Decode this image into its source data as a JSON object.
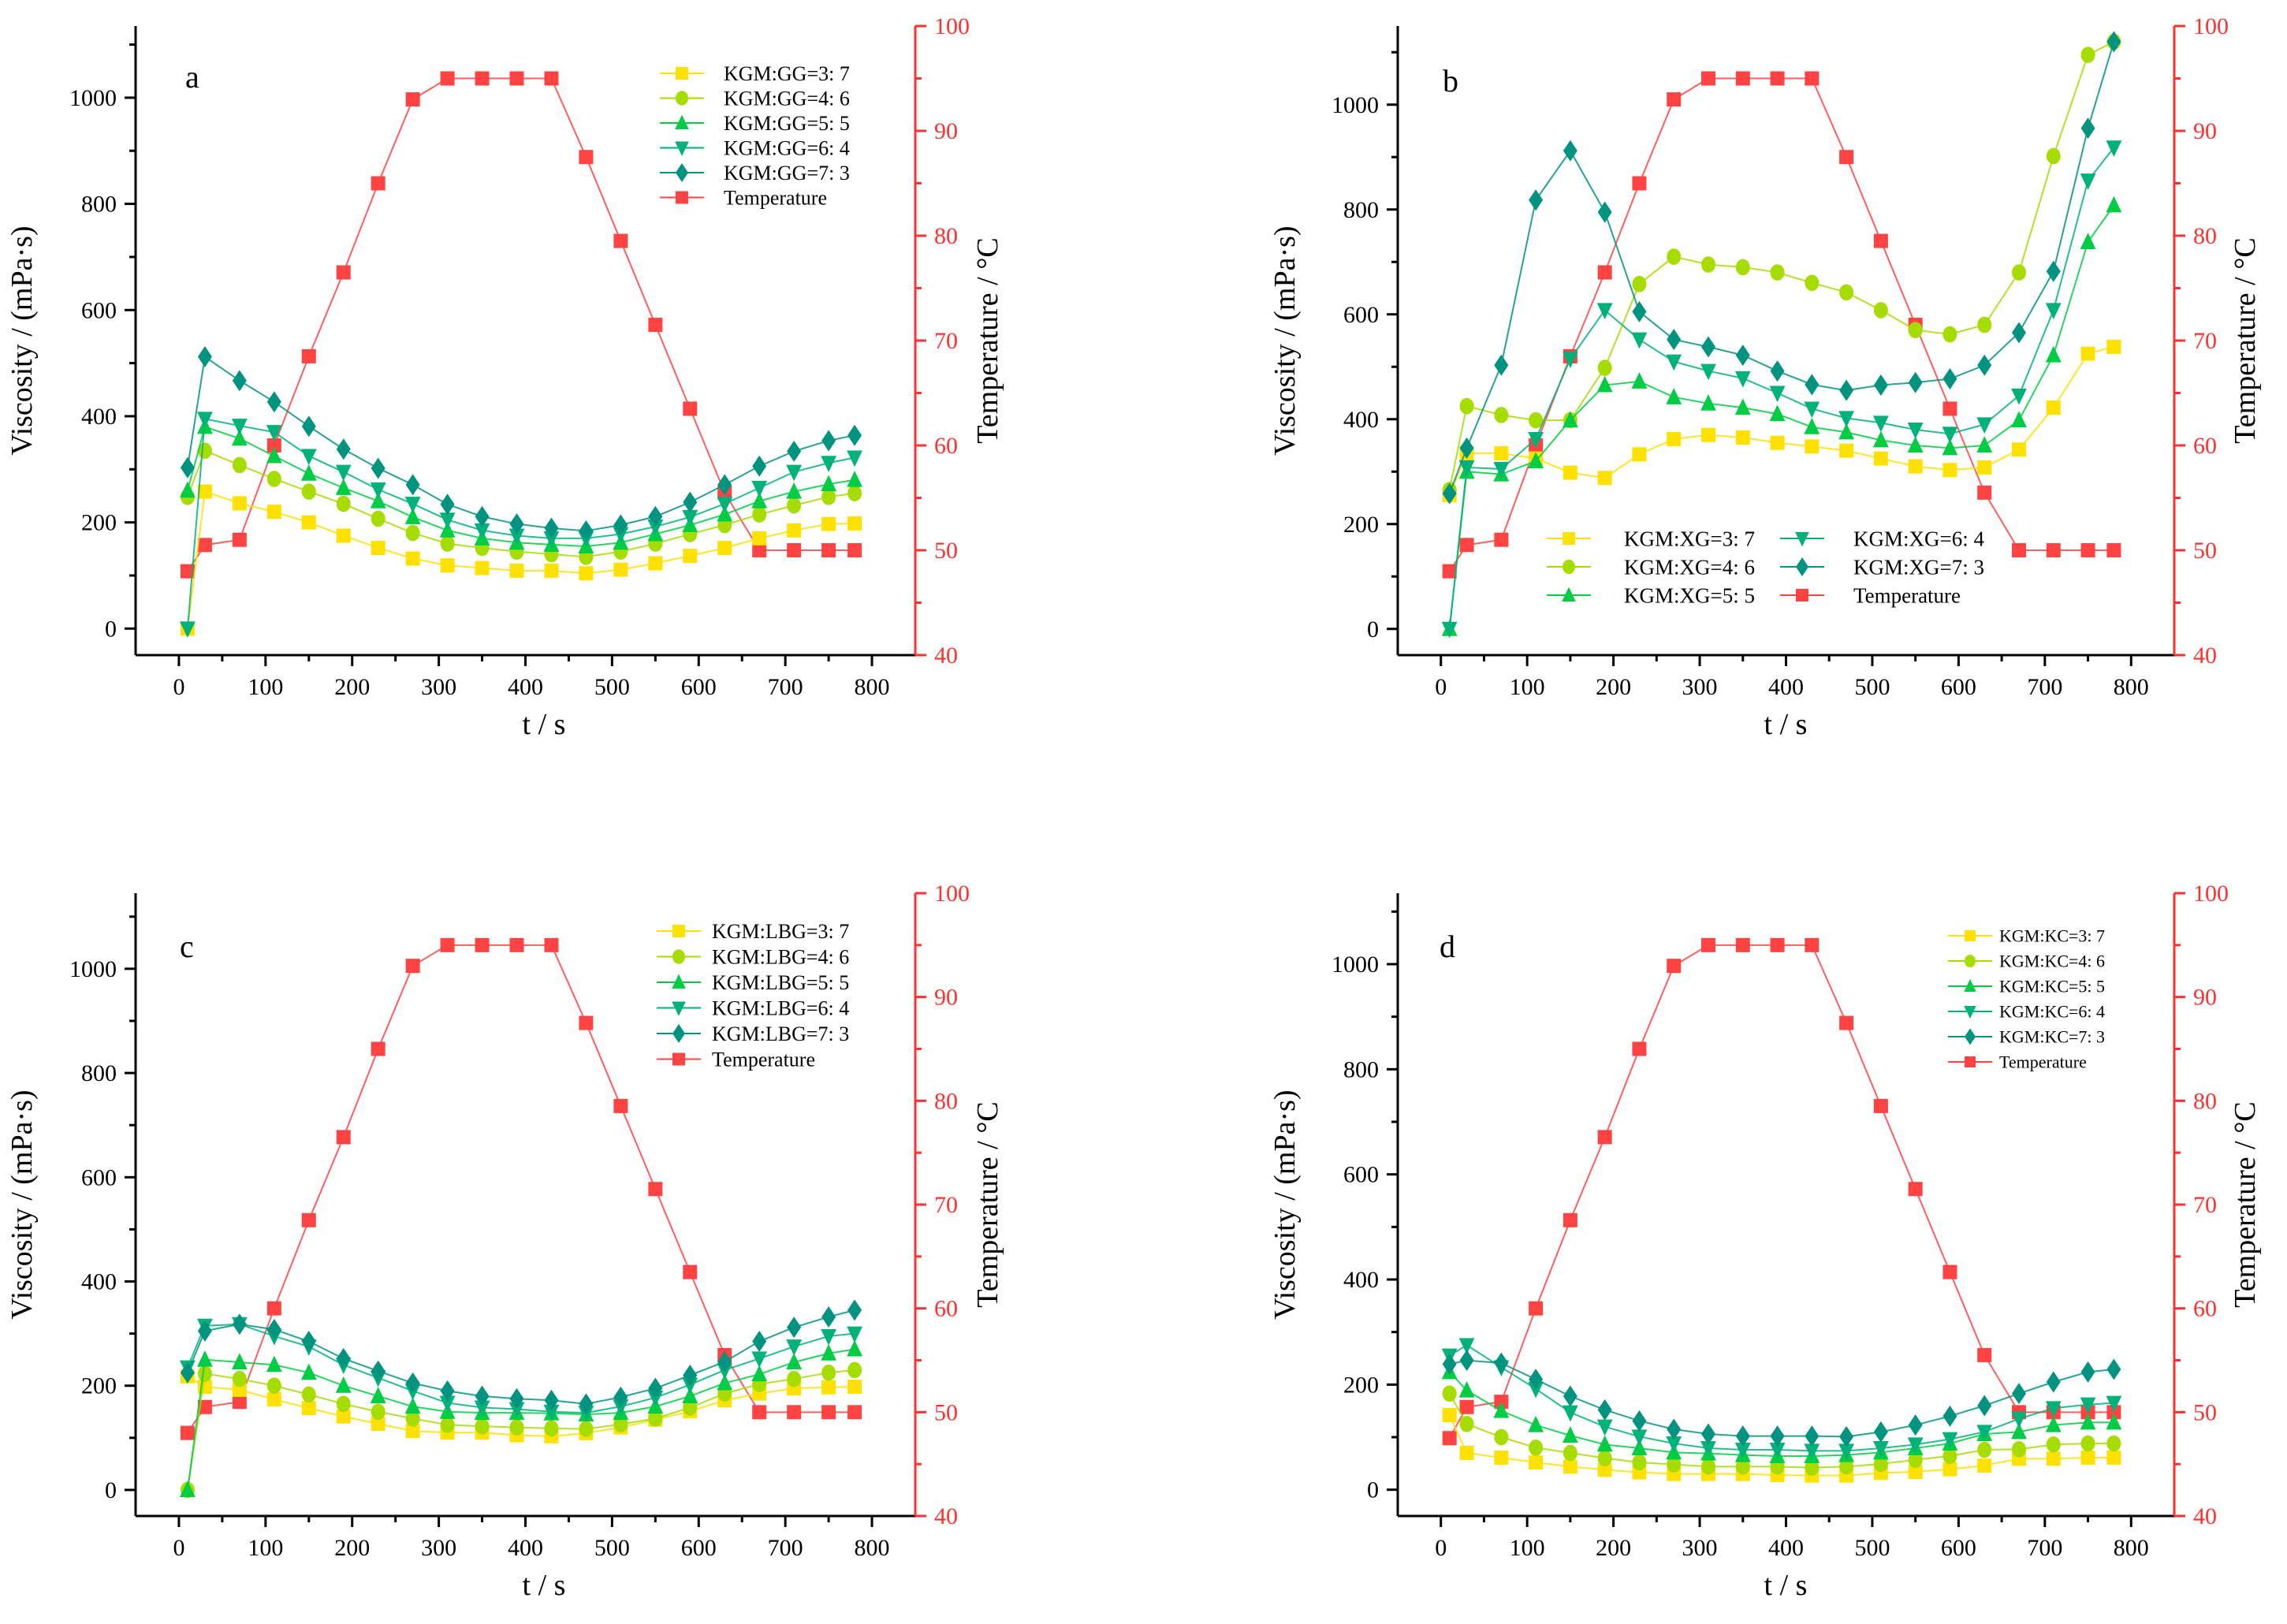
{
  "colors": {
    "s1": "#FFE100",
    "s2": "#A6DC00",
    "s3": "#00CC44",
    "s4": "#00B27A",
    "s5": "#00937F",
    "temp": "#FF4242",
    "axis2": "#FF3030"
  },
  "chart_data": [
    {
      "panel": "a",
      "type": "line",
      "x": [
        10,
        30,
        70,
        110,
        150,
        190,
        230,
        270,
        310,
        350,
        390,
        430,
        470,
        510,
        550,
        590,
        630,
        670,
        710,
        750,
        780
      ],
      "series": [
        {
          "name": "KGM:GG=3: 7",
          "marker": "square",
          "values": [
            0,
            258,
            236,
            220,
            200,
            175,
            152,
            132,
            119,
            114,
            109,
            109,
            104,
            111,
            123,
            137,
            152,
            170,
            185,
            197,
            198
          ]
        },
        {
          "name": "KGM:GG=4: 6",
          "marker": "circle",
          "values": [
            248,
            335,
            308,
            282,
            258,
            235,
            207,
            180,
            160,
            152,
            145,
            140,
            135,
            145,
            160,
            178,
            195,
            215,
            232,
            248,
            255
          ]
        },
        {
          "name": "KGM:GG=5: 5",
          "marker": "triangle-up",
          "values": [
            260,
            380,
            358,
            325,
            292,
            265,
            240,
            210,
            185,
            170,
            162,
            158,
            155,
            162,
            178,
            195,
            215,
            240,
            258,
            272,
            280
          ]
        },
        {
          "name": "KGM:GG=6: 4",
          "marker": "triangle-down",
          "values": [
            0,
            395,
            382,
            370,
            325,
            295,
            262,
            235,
            205,
            185,
            175,
            170,
            170,
            178,
            192,
            210,
            235,
            265,
            295,
            312,
            322
          ]
        },
        {
          "name": "KGM:GG=7: 3",
          "marker": "diamond",
          "values": [
            303,
            512,
            467,
            427,
            381,
            338,
            302,
            271,
            234,
            211,
            197,
            189,
            184,
            195,
            211,
            238,
            271,
            306,
            334,
            354,
            364
          ]
        }
      ],
      "temperature": {
        "name": "Temperature",
        "values": [
          48,
          50.5,
          51,
          60,
          68.5,
          76.5,
          85,
          93,
          95,
          95,
          95,
          95,
          87.5,
          79.5,
          71.5,
          63.5,
          55.5,
          50,
          50,
          50,
          50
        ]
      },
      "xlabel": "t / s",
      "ylabel": "Viscosity / (mPa·s)",
      "y2label": "Temperature / °C",
      "xlim": [
        -50,
        850
      ],
      "ylim": [
        -50,
        1135
      ],
      "y2lim": [
        40,
        100
      ],
      "xticks": [
        0,
        100,
        200,
        300,
        400,
        500,
        600,
        700,
        800
      ],
      "yticks": [
        0,
        200,
        400,
        600,
        800,
        1000
      ],
      "y2ticks": [
        40,
        50,
        60,
        70,
        80,
        90,
        100
      ],
      "legend": "top-right"
    },
    {
      "panel": "b",
      "type": "line",
      "x": [
        10,
        30,
        70,
        110,
        150,
        190,
        230,
        270,
        310,
        350,
        390,
        430,
        470,
        510,
        550,
        590,
        630,
        670,
        710,
        750,
        780
      ],
      "series": [
        {
          "name": "KGM:XG=3: 7",
          "marker": "square",
          "values": [
            255,
            335,
            335,
            325,
            298,
            288,
            333,
            362,
            370,
            365,
            355,
            348,
            340,
            325,
            310,
            303,
            308,
            342,
            422,
            525,
            538
          ]
        },
        {
          "name": "KGM:XG=4: 6",
          "marker": "circle",
          "values": [
            265,
            425,
            408,
            398,
            398,
            498,
            658,
            710,
            695,
            690,
            680,
            660,
            642,
            608,
            570,
            562,
            580,
            680,
            902,
            1095,
            1120
          ]
        },
        {
          "name": "KGM:XG=5: 5",
          "marker": "triangle-up",
          "values": [
            0,
            300,
            295,
            320,
            398,
            465,
            472,
            442,
            430,
            422,
            410,
            385,
            375,
            360,
            350,
            345,
            350,
            398,
            522,
            738,
            808
          ]
        },
        {
          "name": "KGM:XG=6: 4",
          "marker": "triangle-down",
          "values": [
            0,
            308,
            305,
            362,
            515,
            608,
            552,
            510,
            492,
            478,
            450,
            420,
            402,
            393,
            380,
            372,
            390,
            445,
            608,
            855,
            918
          ]
        },
        {
          "name": "KGM:XG=7: 3",
          "marker": "diamond",
          "values": [
            258,
            345,
            503,
            818,
            912,
            795,
            605,
            552,
            538,
            522,
            492,
            466,
            455,
            465,
            470,
            477,
            503,
            565,
            682,
            955,
            1120
          ]
        }
      ],
      "temperature": {
        "name": "Temperature",
        "values": [
          48,
          50.5,
          51,
          60,
          68.5,
          76.5,
          85,
          93,
          95,
          95,
          95,
          95,
          87.5,
          79.5,
          71.5,
          63.5,
          55.5,
          50,
          50,
          50,
          50
        ]
      },
      "xlabel": "t / s",
      "ylabel": "Viscosity / (mPa·s)",
      "y2label": "Temperature / °C",
      "xlim": [
        -50,
        850
      ],
      "ylim": [
        -50,
        1150
      ],
      "y2lim": [
        40,
        100
      ],
      "xticks": [
        0,
        100,
        200,
        300,
        400,
        500,
        600,
        700,
        800
      ],
      "yticks": [
        0,
        200,
        400,
        600,
        800,
        1000
      ],
      "y2ticks": [
        40,
        50,
        60,
        70,
        80,
        90,
        100
      ],
      "legend": "bottom-center, two columns"
    },
    {
      "panel": "c",
      "type": "line",
      "x": [
        10,
        30,
        70,
        110,
        150,
        190,
        230,
        270,
        310,
        350,
        390,
        430,
        470,
        510,
        550,
        590,
        630,
        670,
        710,
        750,
        780
      ],
      "series": [
        {
          "name": "KGM:LBG=3: 7",
          "marker": "square",
          "values": [
            218,
            198,
            192,
            174,
            157,
            141,
            127,
            113,
            110,
            110,
            105,
            103,
            109,
            120,
            135,
            151,
            172,
            185,
            195,
            197,
            198
          ]
        },
        {
          "name": "KGM:LBG=4: 6",
          "marker": "circle",
          "values": [
            0,
            223,
            213,
            200,
            183,
            165,
            150,
            137,
            125,
            122,
            120,
            118,
            117,
            126,
            137,
            158,
            185,
            203,
            213,
            225,
            230
          ]
        },
        {
          "name": "KGM:LBG=5: 5",
          "marker": "triangle-up",
          "values": [
            0,
            250,
            245,
            240,
            225,
            200,
            180,
            160,
            150,
            148,
            148,
            147,
            145,
            148,
            160,
            180,
            205,
            222,
            245,
            262,
            270
          ]
        },
        {
          "name": "KGM:LBG=6: 4",
          "marker": "triangle-down",
          "values": [
            235,
            315,
            318,
            295,
            275,
            240,
            215,
            190,
            167,
            158,
            155,
            150,
            148,
            160,
            177,
            202,
            230,
            252,
            275,
            295,
            300
          ]
        },
        {
          "name": "KGM:LBG=7: 3",
          "marker": "diamond",
          "values": [
            225,
            305,
            318,
            308,
            285,
            252,
            228,
            205,
            190,
            180,
            175,
            172,
            165,
            178,
            195,
            220,
            246,
            285,
            312,
            332,
            345
          ]
        }
      ],
      "temperature": {
        "name": "Temperature",
        "values": [
          48,
          50.5,
          51,
          60,
          68.5,
          76.5,
          85,
          93,
          95,
          95,
          95,
          95,
          87.5,
          79.5,
          71.5,
          63.5,
          55.5,
          50,
          50,
          50,
          50
        ]
      },
      "xlabel": "t / s",
      "ylabel": "Viscosity / (mPa·s)",
      "y2label": "Temperature / °C",
      "xlim": [
        -50,
        850
      ],
      "ylim": [
        -50,
        1145
      ],
      "y2lim": [
        40,
        100
      ],
      "xticks": [
        0,
        100,
        200,
        300,
        400,
        500,
        600,
        700,
        800
      ],
      "yticks": [
        0,
        200,
        400,
        600,
        800,
        1000
      ],
      "y2ticks": [
        40,
        50,
        60,
        70,
        80,
        90,
        100
      ],
      "legend": "top-right"
    },
    {
      "panel": "d",
      "type": "line",
      "x": [
        10,
        30,
        70,
        110,
        150,
        190,
        230,
        270,
        310,
        350,
        390,
        430,
        470,
        510,
        550,
        590,
        630,
        670,
        710,
        750,
        780
      ],
      "series": [
        {
          "name": "KGM:KC=3: 7",
          "marker": "square",
          "values": [
            142,
            70,
            61,
            52,
            44,
            38,
            33,
            30,
            30,
            30,
            28,
            27,
            27,
            32,
            34,
            39,
            46,
            59,
            59,
            61,
            61
          ]
        },
        {
          "name": "KGM:KC=4: 6",
          "marker": "circle",
          "values": [
            183,
            125,
            100,
            80,
            70,
            60,
            52,
            48,
            44,
            44,
            44,
            42,
            44,
            49,
            57,
            64,
            76,
            77,
            86,
            88,
            88
          ]
        },
        {
          "name": "KGM:KC=5: 5",
          "marker": "triangle-up",
          "values": [
            224,
            189,
            150,
            123,
            103,
            86,
            79,
            71,
            69,
            66,
            64,
            64,
            66,
            71,
            79,
            88,
            106,
            110,
            123,
            128,
            128
          ]
        },
        {
          "name": "KGM:KC=6: 4",
          "marker": "triangle-down",
          "values": [
            255,
            275,
            233,
            192,
            147,
            120,
            101,
            88,
            79,
            76,
            76,
            74,
            74,
            79,
            86,
            96,
            110,
            135,
            155,
            162,
            165
          ]
        },
        {
          "name": "KGM:KC=7: 3",
          "marker": "diamond",
          "values": [
            239,
            246,
            241,
            210,
            178,
            152,
            131,
            115,
            106,
            102,
            102,
            102,
            101,
            110,
            123,
            140,
            160,
            183,
            205,
            224,
            229
          ]
        }
      ],
      "temperature": {
        "name": "Temperature",
        "values": [
          47.5,
          50.5,
          51,
          60,
          68.5,
          76.5,
          85,
          93,
          95,
          95,
          95,
          95,
          87.5,
          79.5,
          71.5,
          63.5,
          55.5,
          50,
          50,
          50,
          50
        ]
      },
      "xlabel": "t / s",
      "ylabel": "Viscosity / (mPa·s)",
      "y2label": "Temperature / °C",
      "xlim": [
        -50,
        850
      ],
      "ylim": [
        -50,
        1135
      ],
      "y2lim": [
        40,
        100
      ],
      "xticks": [
        0,
        100,
        200,
        300,
        400,
        500,
        600,
        700,
        800
      ],
      "yticks": [
        0,
        200,
        400,
        600,
        800,
        1000
      ],
      "y2ticks": [
        40,
        50,
        60,
        70,
        80,
        90,
        100
      ],
      "legend": "top-right"
    }
  ]
}
